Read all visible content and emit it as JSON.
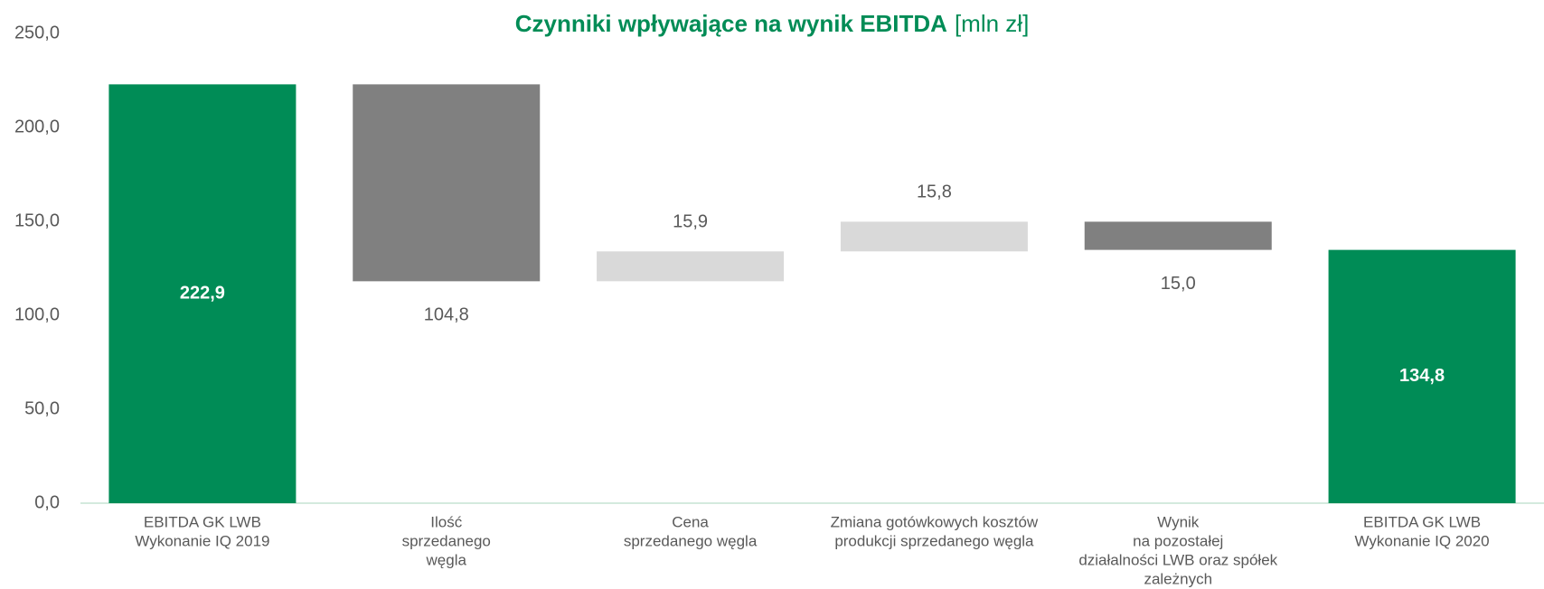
{
  "chart_data": {
    "type": "waterfall",
    "title": "Czynniki wpływające na wynik EBITDA",
    "title_unit": "[mln zł]",
    "categories": [
      [
        "EBITDA GK LWB",
        "Wykonanie IQ 2019"
      ],
      [
        "Ilość",
        "sprzedanego",
        "węgla"
      ],
      [
        "Cena",
        "sprzedanego węgla"
      ],
      [
        "Zmiana gotówkowych kosztów",
        "produkcji sprzedanego węgla"
      ],
      [
        "Wynik",
        "na pozostałej",
        "działalności LWB oraz spółek",
        "zależnych"
      ],
      [
        "EBITDA GK LWB",
        "Wykonanie IQ 2020"
      ]
    ],
    "values": [
      222.9,
      -104.8,
      15.9,
      15.8,
      -15.0,
      134.8
    ],
    "value_labels": [
      "222,9",
      "104,8",
      "15,9",
      "15,8",
      "15,0",
      "134,8"
    ],
    "totals": [
      true,
      false,
      false,
      false,
      false,
      true
    ],
    "colors": [
      "#008c56",
      "#808080",
      "#d9d9d9",
      "#d9d9d9",
      "#808080",
      "#008c56"
    ],
    "ylim": [
      0,
      250
    ],
    "yticks": [
      {
        "value": 0,
        "label": "0,0"
      },
      {
        "value": 50,
        "label": "50,0"
      },
      {
        "value": 100,
        "label": "100,0"
      },
      {
        "value": 150,
        "label": "150,0"
      },
      {
        "value": 200,
        "label": "200,0"
      },
      {
        "value": 250,
        "label": "250,0"
      }
    ]
  }
}
